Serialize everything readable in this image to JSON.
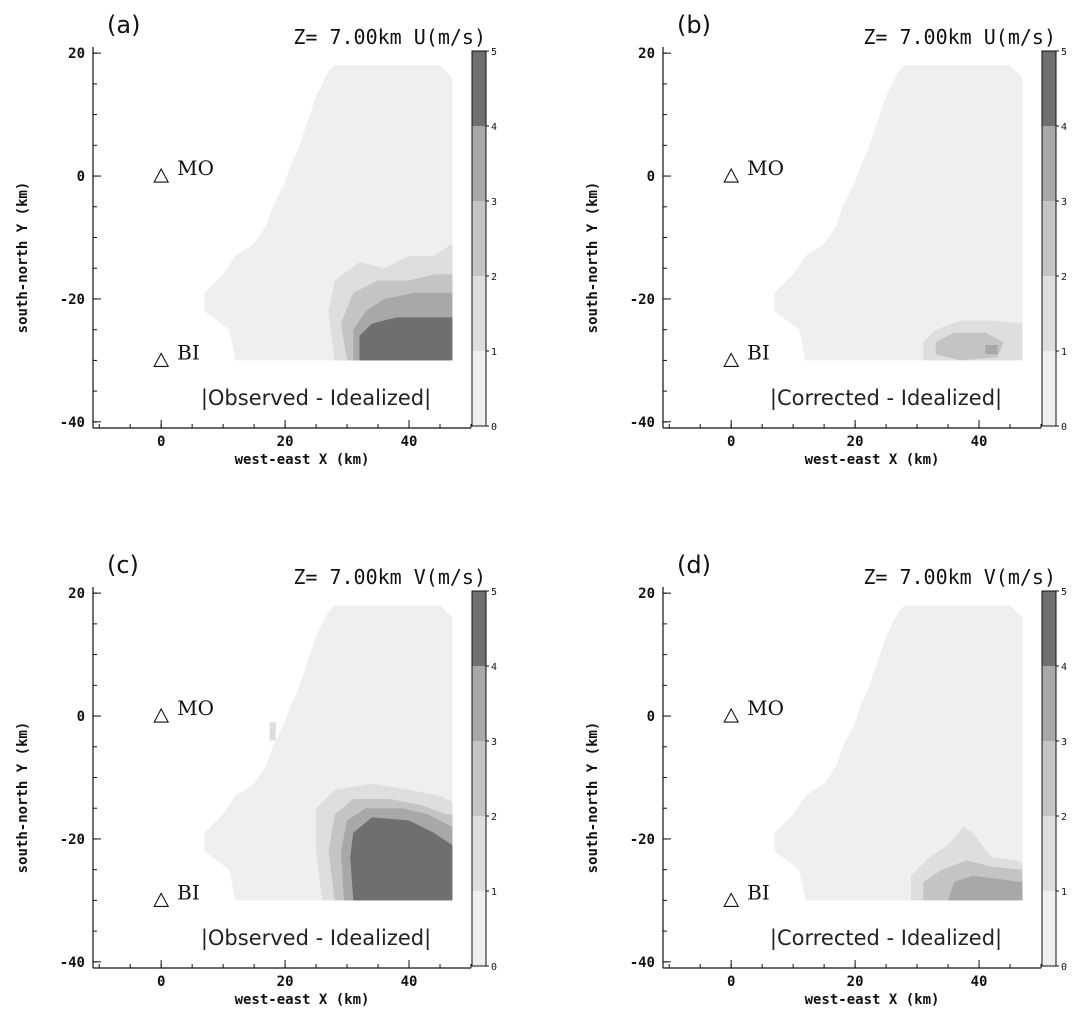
{
  "chart_data": [
    {
      "type": "heatmap",
      "panel_label": "(a)",
      "header": "Z= 7.00km U(m/s)",
      "annotation": "|Observed - Idealized|",
      "xlabel": "west-east X (km)",
      "ylabel": "south-north Y (km)",
      "xticks": [
        "0",
        "20",
        "40"
      ],
      "yticks": [
        "20",
        "0",
        "-20",
        "-40"
      ],
      "xlim": [
        -11,
        50
      ],
      "ylim": [
        -41,
        21
      ],
      "colorbar_ticks": [
        "5",
        "4",
        "3",
        "2",
        "1",
        "0"
      ],
      "colorbar_levels": [
        0,
        1,
        2,
        3,
        4,
        5
      ],
      "stations": [
        {
          "name": "MO",
          "x": 0,
          "y": 0
        },
        {
          "name": "BI",
          "x": 0,
          "y": -30
        }
      ],
      "regions": [
        {
          "level": 1,
          "points": [
            [
              28,
              -30
            ],
            [
              27,
              -22
            ],
            [
              28,
              -17
            ],
            [
              32,
              -14
            ],
            [
              36,
              -15
            ],
            [
              40,
              -13
            ],
            [
              44,
              -13
            ],
            [
              47,
              -11
            ],
            [
              47,
              -30
            ]
          ]
        },
        {
          "level": 2,
          "points": [
            [
              30,
              -30
            ],
            [
              29,
              -24
            ],
            [
              31,
              -19
            ],
            [
              35,
              -17
            ],
            [
              40,
              -17
            ],
            [
              44,
              -16
            ],
            [
              47,
              -16
            ],
            [
              47,
              -30
            ]
          ]
        },
        {
          "level": 3,
          "points": [
            [
              31,
              -30
            ],
            [
              31,
              -25
            ],
            [
              33,
              -22
            ],
            [
              36,
              -20
            ],
            [
              41,
              -19
            ],
            [
              45,
              -19
            ],
            [
              47,
              -19
            ],
            [
              47,
              -30
            ]
          ]
        },
        {
          "level": 4,
          "points": [
            [
              32,
              -30
            ],
            [
              32,
              -26
            ],
            [
              34,
              -24
            ],
            [
              38,
              -23
            ],
            [
              43,
              -23
            ],
            [
              47,
              -23
            ],
            [
              47,
              -30
            ]
          ]
        }
      ]
    },
    {
      "type": "heatmap",
      "panel_label": "(b)",
      "header": "Z= 7.00km U(m/s)",
      "annotation": "|Corrected - Idealized|",
      "xlabel": "west-east X (km)",
      "ylabel": "south-north Y (km)",
      "xticks": [
        "0",
        "20",
        "40"
      ],
      "yticks": [
        "20",
        "0",
        "-20",
        "-40"
      ],
      "xlim": [
        -11,
        50
      ],
      "ylim": [
        -41,
        21
      ],
      "colorbar_ticks": [
        "5",
        "4",
        "3",
        "2",
        "1",
        "0"
      ],
      "colorbar_levels": [
        0,
        1,
        2,
        3,
        4,
        5
      ],
      "stations": [
        {
          "name": "MO",
          "x": 0,
          "y": 0
        },
        {
          "name": "BI",
          "x": 0,
          "y": -30
        }
      ],
      "regions": [
        {
          "level": 1,
          "points": [
            [
              31,
              -30
            ],
            [
              31,
              -27
            ],
            [
              33,
              -25
            ],
            [
              37,
              -23.5
            ],
            [
              42,
              -23.5
            ],
            [
              47,
              -24
            ],
            [
              47,
              -30
            ]
          ]
        },
        {
          "level": 2,
          "points": [
            [
              33,
              -29
            ],
            [
              33,
              -27
            ],
            [
              36,
              -25.5
            ],
            [
              41,
              -25.5
            ],
            [
              44,
              -27
            ],
            [
              43,
              -29.5
            ],
            [
              37,
              -30
            ]
          ]
        },
        {
          "level": 3,
          "points": [
            [
              41,
              -27.5
            ],
            [
              43,
              -27.5
            ],
            [
              43,
              -29
            ],
            [
              41,
              -29
            ]
          ]
        }
      ]
    },
    {
      "type": "heatmap",
      "panel_label": "(c)",
      "header": "Z= 7.00km V(m/s)",
      "annotation": "|Observed - Idealized|",
      "xlabel": "west-east X (km)",
      "ylabel": "south-north Y (km)",
      "xticks": [
        "0",
        "20",
        "40"
      ],
      "yticks": [
        "20",
        "0",
        "-20",
        "-40"
      ],
      "xlim": [
        -11,
        50
      ],
      "ylim": [
        -41,
        21
      ],
      "colorbar_ticks": [
        "5",
        "4",
        "3",
        "2",
        "1",
        "0"
      ],
      "colorbar_levels": [
        0,
        1,
        2,
        3,
        4,
        5
      ],
      "stations": [
        {
          "name": "MO",
          "x": 0,
          "y": 0
        },
        {
          "name": "BI",
          "x": 0,
          "y": -30
        }
      ],
      "regions": [
        {
          "level": 1,
          "points": [
            [
              26,
              -30
            ],
            [
              25,
              -22
            ],
            [
              25,
              -15
            ],
            [
              28,
              -12
            ],
            [
              34,
              -11
            ],
            [
              40,
              -12
            ],
            [
              45,
              -13
            ],
            [
              47,
              -14
            ],
            [
              47,
              -30
            ]
          ]
        },
        {
          "level": 2,
          "points": [
            [
              28,
              -30
            ],
            [
              27,
              -22
            ],
            [
              28,
              -16
            ],
            [
              31,
              -13.5
            ],
            [
              37,
              -13.5
            ],
            [
              42,
              -14.5
            ],
            [
              46,
              -16
            ],
            [
              47,
              -16
            ],
            [
              47,
              -30
            ]
          ]
        },
        {
          "level": 3,
          "points": [
            [
              29.5,
              -30
            ],
            [
              29,
              -22
            ],
            [
              30,
              -17
            ],
            [
              33,
              -15
            ],
            [
              39,
              -15
            ],
            [
              43,
              -16
            ],
            [
              47,
              -18
            ],
            [
              47,
              -30
            ]
          ]
        },
        {
          "level": 4,
          "points": [
            [
              31,
              -30
            ],
            [
              30.5,
              -23
            ],
            [
              31,
              -19
            ],
            [
              34,
              -16.5
            ],
            [
              40,
              -17
            ],
            [
              44,
              -19
            ],
            [
              47,
              -21
            ],
            [
              47,
              -30
            ]
          ]
        },
        {
          "level": 1,
          "points": [
            [
              17.5,
              -1
            ],
            [
              18.5,
              -1
            ],
            [
              18.5,
              -4
            ],
            [
              17.5,
              -4
            ]
          ]
        }
      ]
    },
    {
      "type": "heatmap",
      "panel_label": "(d)",
      "header": "Z= 7.00km V(m/s)",
      "annotation": "|Corrected - Idealized|",
      "xlabel": "west-east X (km)",
      "ylabel": "south-north Y (km)",
      "xticks": [
        "0",
        "20",
        "40"
      ],
      "yticks": [
        "20",
        "0",
        "-20",
        "-40"
      ],
      "xlim": [
        -11,
        50
      ],
      "ylim": [
        -41,
        21
      ],
      "colorbar_ticks": [
        "5",
        "4",
        "3",
        "2",
        "1",
        "0"
      ],
      "colorbar_levels": [
        0,
        1,
        2,
        3,
        4,
        5
      ],
      "stations": [
        {
          "name": "MO",
          "x": 0,
          "y": 0
        },
        {
          "name": "BI",
          "x": 0,
          "y": -30
        }
      ],
      "regions": [
        {
          "level": 1,
          "points": [
            [
              29,
              -30
            ],
            [
              29,
              -26
            ],
            [
              32,
              -23
            ],
            [
              35,
              -21
            ],
            [
              37.5,
              -18
            ],
            [
              39,
              -19
            ],
            [
              42,
              -23
            ],
            [
              46,
              -23.5
            ],
            [
              47,
              -24
            ],
            [
              47,
              -30
            ]
          ]
        },
        {
          "level": 2,
          "points": [
            [
              31,
              -30
            ],
            [
              31,
              -27
            ],
            [
              34,
              -25
            ],
            [
              38,
              -23.5
            ],
            [
              42,
              -24.5
            ],
            [
              47,
              -25
            ],
            [
              47,
              -30
            ]
          ]
        },
        {
          "level": 3,
          "points": [
            [
              35,
              -30
            ],
            [
              36,
              -27
            ],
            [
              39,
              -26
            ],
            [
              43,
              -26.5
            ],
            [
              47,
              -27
            ],
            [
              47,
              -30
            ]
          ]
        }
      ]
    }
  ],
  "colors": {
    "level0": "#efefef",
    "level1": "#dedede",
    "level2": "#c4c4c4",
    "level3": "#a8a8a8",
    "level4": "#6f6f6f",
    "axis": "#111111"
  }
}
